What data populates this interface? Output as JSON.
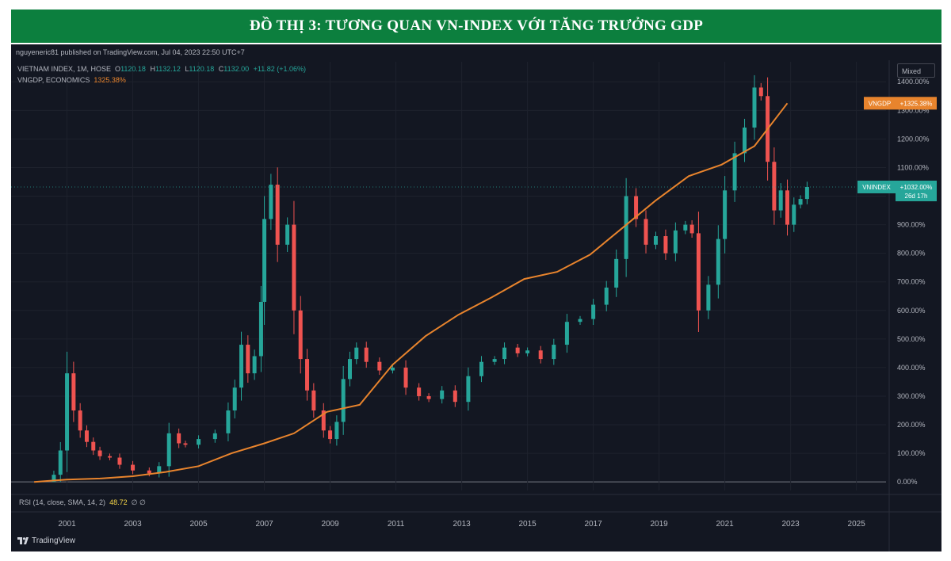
{
  "banner": {
    "title": "ĐỒ THỊ 3: TƯƠNG QUAN VN-INDEX VỚI TĂNG TRƯỞNG GDP"
  },
  "tv": {
    "publisher": "nguyeneric81 published on TradingView.com, Jul 04, 2023 22:50 UTC+7",
    "legend1_name": "VIETNAM INDEX, 1M, HOSE",
    "ohlc": {
      "o_label": "O",
      "o": "1120.18",
      "h_label": "H",
      "h": "1132.12",
      "l_label": "L",
      "l": "1120.18",
      "c_label": "C",
      "c": "1132.00",
      "chg": "+11.82 (+1.06%)"
    },
    "legend2_name": "VNGDP, ECONOMICS",
    "legend2_value": "1325.38%",
    "scale_mode": "Mixed",
    "rsi_label": "RSI (14, close, SMA, 14, 2)",
    "rsi_value": "48.72",
    "rsi_extra": "∅ ∅",
    "logo": "TradingView",
    "vngdp_tag": {
      "name": "VNGDP",
      "value": "+1325.38%"
    },
    "vnindex_tag": {
      "name": "VNINDEX",
      "value": "+1032.00%",
      "countdown": "26d 17h"
    }
  },
  "colors": {
    "up": "#26a69a",
    "down": "#ef5350",
    "gdp": "#e8842d",
    "background": "#131722",
    "banner": "#0c7f3e"
  },
  "chart_data": {
    "type": "line",
    "y_scale": "percent change",
    "ylim": [
      -30,
      1470
    ],
    "xlim": [
      1999.3,
      2025.9
    ],
    "y_ticks": [
      0,
      100,
      200,
      300,
      400,
      500,
      600,
      700,
      800,
      900,
      1000,
      1100,
      1200,
      1300,
      1400
    ],
    "y_tick_labels": [
      "0.00%",
      "100.00%",
      "200.00%",
      "300.00%",
      "400.00%",
      "500.00%",
      "600.00%",
      "700.00%",
      "800.00%",
      "900.00%",
      "1000.00%",
      "1100.00%",
      "1200.00%",
      "1300.00%",
      "1400.00%"
    ],
    "x_ticks": [
      2001,
      2003,
      2005,
      2007,
      2009,
      2011,
      2013,
      2015,
      2017,
      2019,
      2021,
      2023,
      2025
    ],
    "x_tick_labels": [
      "2001",
      "2003",
      "2005",
      "2007",
      "2009",
      "2011",
      "2013",
      "2015",
      "2017",
      "2019",
      "2021",
      "2023",
      "2025"
    ],
    "series": [
      {
        "name": "VNINDEX",
        "style": "candlestick",
        "x": [
          2000.4,
          2000.6,
          2000.8,
          2001.0,
          2001.2,
          2001.4,
          2001.6,
          2001.8,
          2002.0,
          2002.3,
          2002.6,
          2003.0,
          2003.5,
          2003.8,
          2004.1,
          2004.4,
          2004.6,
          2005.0,
          2005.5,
          2005.9,
          2006.1,
          2006.3,
          2006.5,
          2006.7,
          2006.9,
          2007.0,
          2007.2,
          2007.4,
          2007.7,
          2007.9,
          2008.1,
          2008.3,
          2008.5,
          2008.8,
          2009.0,
          2009.2,
          2009.4,
          2009.6,
          2009.8,
          2010.1,
          2010.5,
          2010.9,
          2011.3,
          2011.7,
          2012.0,
          2012.4,
          2012.8,
          2013.2,
          2013.6,
          2014.0,
          2014.3,
          2014.7,
          2015.0,
          2015.4,
          2015.8,
          2016.2,
          2016.6,
          2017.0,
          2017.4,
          2017.7,
          2018.0,
          2018.3,
          2018.6,
          2018.9,
          2019.2,
          2019.5,
          2019.8,
          2020.0,
          2020.2,
          2020.5,
          2020.8,
          2021.0,
          2021.3,
          2021.6,
          2021.9,
          2022.1,
          2022.3,
          2022.5,
          2022.7,
          2022.9,
          2023.1,
          2023.3,
          2023.5
        ],
        "y": [
          0,
          25,
          110,
          380,
          250,
          180,
          140,
          110,
          90,
          85,
          60,
          40,
          30,
          55,
          170,
          135,
          130,
          150,
          170,
          250,
          330,
          480,
          380,
          440,
          630,
          920,
          1040,
          830,
          900,
          600,
          430,
          320,
          250,
          180,
          150,
          210,
          360,
          430,
          470,
          420,
          390,
          400,
          330,
          300,
          290,
          320,
          280,
          370,
          420,
          430,
          470,
          450,
          460,
          430,
          480,
          560,
          570,
          620,
          680,
          780,
          1000,
          920,
          830,
          860,
          800,
          880,
          900,
          870,
          600,
          690,
          850,
          1020,
          1150,
          1240,
          1380,
          1350,
          1120,
          950,
          1020,
          900,
          970,
          990,
          1032
        ]
      },
      {
        "name": "VNGDP",
        "style": "line",
        "x": [
          2000.0,
          2000.6,
          2001.0,
          2002.0,
          2003.0,
          2004.0,
          2005.0,
          2006.0,
          2007.0,
          2007.9,
          2008.9,
          2009.9,
          2010.9,
          2011.9,
          2012.9,
          2013.9,
          2014.9,
          2015.9,
          2016.9,
          2017.9,
          2018.9,
          2019.9,
          2020.9,
          2021.9,
          2022.9
        ],
        "y": [
          0,
          5,
          8,
          12,
          20,
          35,
          55,
          100,
          135,
          170,
          245,
          270,
          410,
          510,
          585,
          645,
          710,
          735,
          795,
          890,
          985,
          1070,
          1110,
          1175,
          1325
        ]
      }
    ]
  }
}
